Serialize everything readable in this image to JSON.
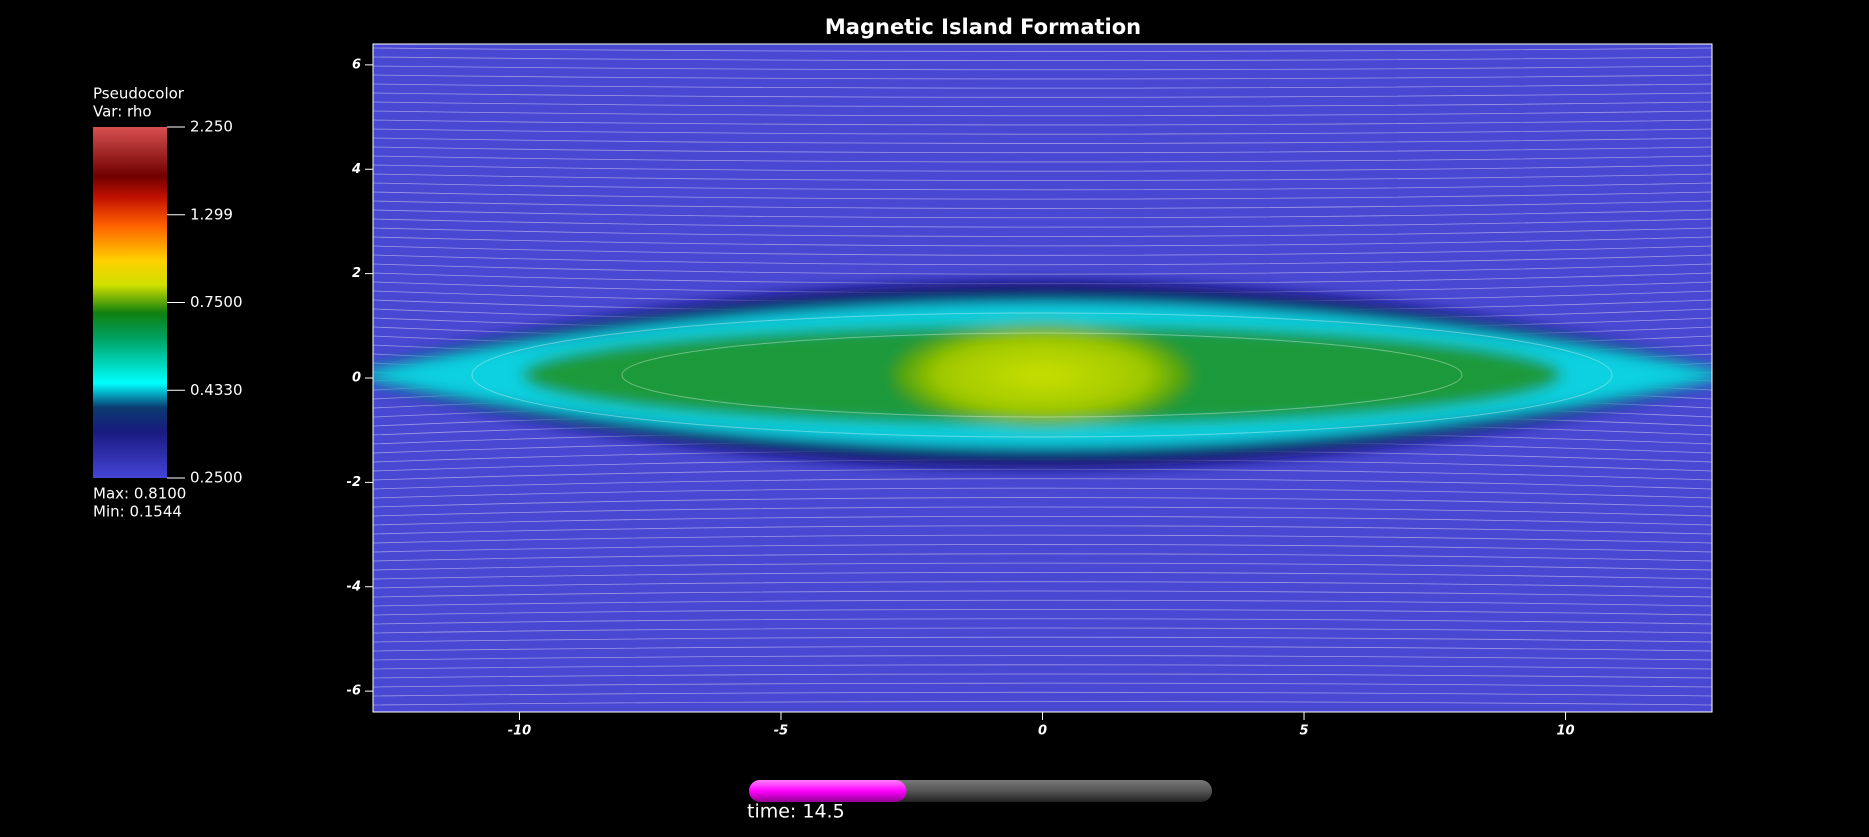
{
  "chart_data": {
    "type": "pseudocolor",
    "title": "Magnetic Island Formation",
    "legend_title": "Pseudocolor",
    "variable": "Var: rho",
    "colorbar_scale": "log",
    "colorbar_lim": [
      0.25,
      2.25
    ],
    "colorbar_ticks": [
      {
        "value": 2.25,
        "label": "2.250"
      },
      1.299,
      {
        "value": 0.75,
        "label": "0.7500"
      },
      {
        "value": 0.433,
        "label": "0.4330"
      },
      {
        "value": 0.25,
        "label": "0.2500"
      }
    ],
    "max_label": "Max:  0.8100",
    "min_label": "Min:  0.1544",
    "xlim": [
      -12.8,
      12.8
    ],
    "xticks": [
      -10,
      -5,
      0,
      5,
      10
    ],
    "ylim": [
      -6.4,
      6.4
    ],
    "yticks": [
      -6,
      -4,
      -2,
      0,
      2,
      4,
      6
    ],
    "time_label": "time: 14.5",
    "time_progress": 0.34
  }
}
